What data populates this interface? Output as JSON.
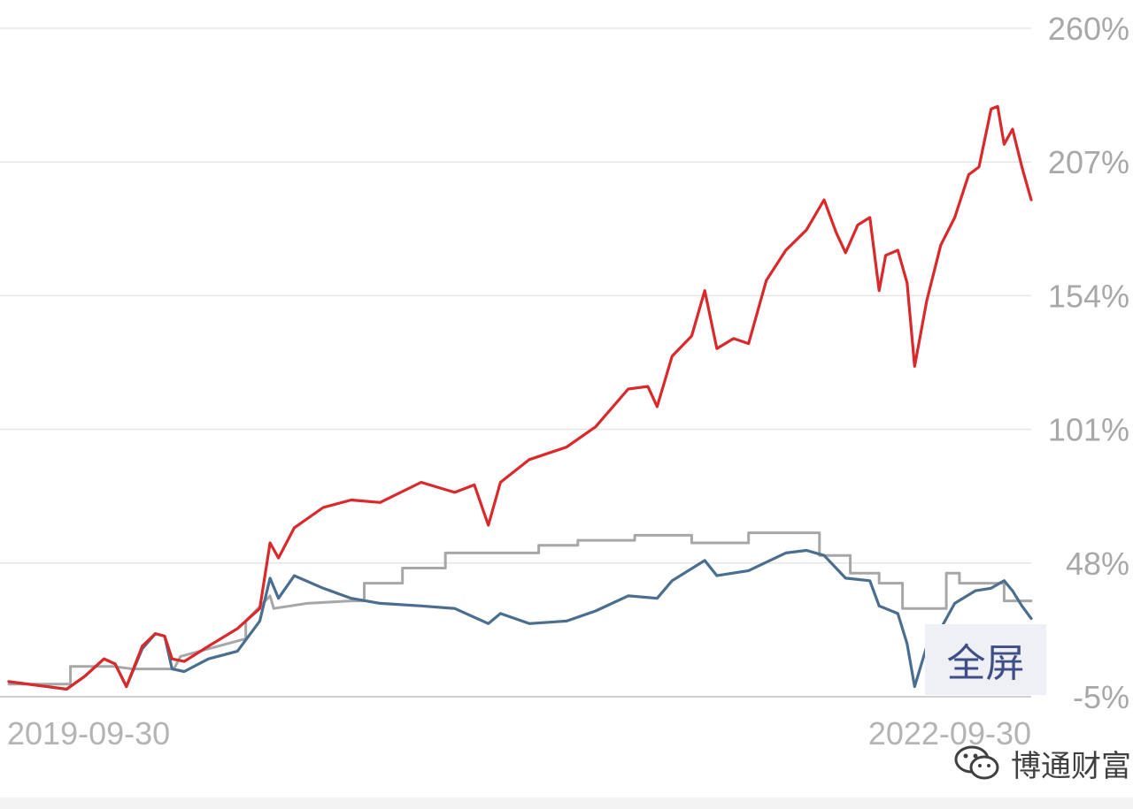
{
  "chart_data": {
    "type": "line",
    "y_unit": "%",
    "yticks": [
      "260%",
      "207%",
      "154%",
      "101%",
      "48%",
      "-5%"
    ],
    "ylim": [
      -5,
      260
    ],
    "xlim": [
      "2019-09-30",
      "2022-09-30"
    ],
    "x_labels": [
      "2019-09-30",
      "2022-09-30"
    ],
    "grid": true,
    "series": [
      {
        "color": "#d9292b",
        "points": [
          [
            "2019-09-30",
            1
          ],
          [
            "2019-10-20",
            0
          ],
          [
            "2019-11-10",
            -1
          ],
          [
            "2019-12-01",
            -2
          ],
          [
            "2019-12-20",
            3
          ],
          [
            "2020-01-10",
            10
          ],
          [
            "2020-01-22",
            8
          ],
          [
            "2020-02-03",
            -1
          ],
          [
            "2020-02-20",
            15
          ],
          [
            "2020-03-05",
            20
          ],
          [
            "2020-03-15",
            19
          ],
          [
            "2020-03-23",
            10
          ],
          [
            "2020-04-05",
            9
          ],
          [
            "2020-05-01",
            15
          ],
          [
            "2020-06-01",
            22
          ],
          [
            "2020-06-25",
            30
          ],
          [
            "2020-07-06",
            56
          ],
          [
            "2020-07-15",
            50
          ],
          [
            "2020-08-01",
            62
          ],
          [
            "2020-09-01",
            70
          ],
          [
            "2020-10-01",
            73
          ],
          [
            "2020-11-01",
            72
          ],
          [
            "2020-12-15",
            80
          ],
          [
            "2021-01-20",
            76
          ],
          [
            "2021-02-10",
            79
          ],
          [
            "2021-02-25",
            63
          ],
          [
            "2021-03-10",
            80
          ],
          [
            "2021-04-10",
            89
          ],
          [
            "2021-05-20",
            94
          ],
          [
            "2021-06-20",
            102
          ],
          [
            "2021-07-25",
            117
          ],
          [
            "2021-08-15",
            118
          ],
          [
            "2021-08-25",
            110
          ],
          [
            "2021-09-10",
            130
          ],
          [
            "2021-10-01",
            138
          ],
          [
            "2021-10-15",
            156
          ],
          [
            "2021-10-28",
            133
          ],
          [
            "2021-11-15",
            137
          ],
          [
            "2021-12-01",
            135
          ],
          [
            "2021-12-20",
            160
          ],
          [
            "2022-01-10",
            172
          ],
          [
            "2022-02-01",
            180
          ],
          [
            "2022-02-20",
            192
          ],
          [
            "2022-03-05",
            179
          ],
          [
            "2022-03-15",
            171
          ],
          [
            "2022-03-28",
            182
          ],
          [
            "2022-04-10",
            185
          ],
          [
            "2022-04-20",
            156
          ],
          [
            "2022-04-27",
            170
          ],
          [
            "2022-05-10",
            172
          ],
          [
            "2022-05-20",
            159
          ],
          [
            "2022-05-28",
            126
          ],
          [
            "2022-06-10",
            152
          ],
          [
            "2022-06-25",
            174
          ],
          [
            "2022-07-10",
            185
          ],
          [
            "2022-07-25",
            202
          ],
          [
            "2022-08-05",
            205
          ],
          [
            "2022-08-18",
            228
          ],
          [
            "2022-08-25",
            229
          ],
          [
            "2022-09-01",
            214
          ],
          [
            "2022-09-10",
            220
          ],
          [
            "2022-09-20",
            205
          ],
          [
            "2022-09-30",
            192
          ]
        ]
      },
      {
        "color": "#4a6e8f",
        "points": [
          [
            "2019-09-30",
            1
          ],
          [
            "2019-10-20",
            0
          ],
          [
            "2019-11-10",
            -1
          ],
          [
            "2019-12-01",
            -2
          ],
          [
            "2019-12-20",
            3
          ],
          [
            "2020-01-10",
            10
          ],
          [
            "2020-01-22",
            8
          ],
          [
            "2020-02-03",
            -1
          ],
          [
            "2020-02-20",
            14
          ],
          [
            "2020-03-05",
            20
          ],
          [
            "2020-03-15",
            19
          ],
          [
            "2020-03-23",
            6
          ],
          [
            "2020-04-05",
            5
          ],
          [
            "2020-05-01",
            10
          ],
          [
            "2020-06-01",
            13
          ],
          [
            "2020-06-25",
            25
          ],
          [
            "2020-07-06",
            42
          ],
          [
            "2020-07-15",
            34
          ],
          [
            "2020-08-01",
            43
          ],
          [
            "2020-09-01",
            38
          ],
          [
            "2020-10-01",
            34
          ],
          [
            "2020-11-01",
            32
          ],
          [
            "2020-12-15",
            31
          ],
          [
            "2021-01-20",
            30
          ],
          [
            "2021-02-25",
            24
          ],
          [
            "2021-03-10",
            28
          ],
          [
            "2021-04-10",
            24
          ],
          [
            "2021-05-20",
            25
          ],
          [
            "2021-06-20",
            29
          ],
          [
            "2021-07-25",
            35
          ],
          [
            "2021-08-25",
            34
          ],
          [
            "2021-09-10",
            41
          ],
          [
            "2021-10-15",
            49
          ],
          [
            "2021-10-28",
            43
          ],
          [
            "2021-12-01",
            45
          ],
          [
            "2022-01-10",
            52
          ],
          [
            "2022-02-01",
            53
          ],
          [
            "2022-02-20",
            51
          ],
          [
            "2022-03-15",
            42
          ],
          [
            "2022-04-10",
            41
          ],
          [
            "2022-04-20",
            31
          ],
          [
            "2022-05-10",
            28
          ],
          [
            "2022-05-20",
            16
          ],
          [
            "2022-05-28",
            -1
          ],
          [
            "2022-06-10",
            15
          ],
          [
            "2022-06-25",
            22
          ],
          [
            "2022-07-10",
            32
          ],
          [
            "2022-08-01",
            37
          ],
          [
            "2022-08-18",
            38
          ],
          [
            "2022-09-01",
            41
          ],
          [
            "2022-09-10",
            37
          ],
          [
            "2022-09-20",
            31
          ],
          [
            "2022-09-30",
            26
          ]
        ]
      },
      {
        "color": "#a7a7a7",
        "points": [
          [
            "2019-09-30",
            0
          ],
          [
            "2019-12-05",
            0
          ],
          [
            "2019-12-05",
            7
          ],
          [
            "2020-01-20",
            7
          ],
          [
            "2020-02-10",
            6
          ],
          [
            "2020-03-25",
            6
          ],
          [
            "2020-04-01",
            11
          ],
          [
            "2020-06-10",
            18
          ],
          [
            "2020-06-10",
            25
          ],
          [
            "2020-07-06",
            35
          ],
          [
            "2020-07-10",
            30
          ],
          [
            "2020-08-15",
            32
          ],
          [
            "2020-10-01",
            33
          ],
          [
            "2020-10-15",
            33
          ],
          [
            "2020-10-15",
            40
          ],
          [
            "2020-11-25",
            40
          ],
          [
            "2020-11-25",
            46
          ],
          [
            "2021-01-10",
            46
          ],
          [
            "2021-01-10",
            52
          ],
          [
            "2021-04-20",
            52
          ],
          [
            "2021-04-20",
            55
          ],
          [
            "2021-06-01",
            55
          ],
          [
            "2021-06-01",
            57
          ],
          [
            "2021-08-01",
            57
          ],
          [
            "2021-08-01",
            59
          ],
          [
            "2021-10-01",
            59
          ],
          [
            "2021-10-01",
            56
          ],
          [
            "2021-12-01",
            56
          ],
          [
            "2021-12-01",
            60
          ],
          [
            "2022-02-15",
            60
          ],
          [
            "2022-02-15",
            51
          ],
          [
            "2022-03-20",
            51
          ],
          [
            "2022-03-20",
            44
          ],
          [
            "2022-04-20",
            44
          ],
          [
            "2022-04-20",
            40
          ],
          [
            "2022-05-15",
            40
          ],
          [
            "2022-05-15",
            30
          ],
          [
            "2022-07-01",
            30
          ],
          [
            "2022-07-01",
            44
          ],
          [
            "2022-07-15",
            44
          ],
          [
            "2022-07-15",
            40
          ],
          [
            "2022-09-01",
            40
          ],
          [
            "2022-09-01",
            33
          ],
          [
            "2022-09-30",
            33
          ]
        ]
      }
    ]
  },
  "ui": {
    "fullscreen_label": "全屏",
    "watermark_text": "博通财富"
  }
}
